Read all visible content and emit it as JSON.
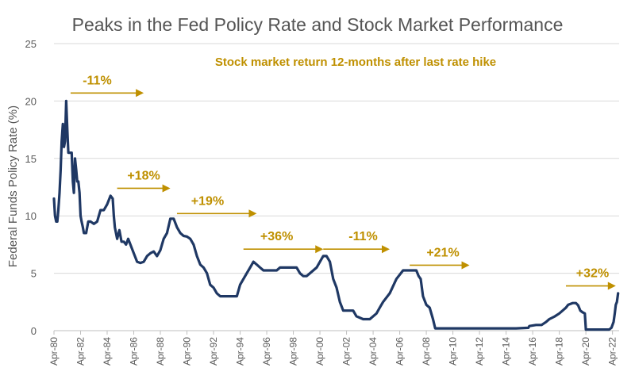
{
  "chart_data": {
    "type": "line",
    "title": "Peaks in the Fed Policy Rate and Stock Market Performance",
    "subtitle": "Stock market return 12-months after last rate hike",
    "xlabel": "",
    "ylabel": "Federal Funds Policy Rate (%)",
    "ylim": [
      0,
      25
    ],
    "yticks": [
      0,
      5,
      10,
      15,
      20,
      25
    ],
    "xlim": [
      1980.25,
      2022.75
    ],
    "xtick_labels": [
      "Apr-80",
      "Apr-82",
      "Apr-84",
      "Apr-86",
      "Apr-88",
      "Apr-90",
      "Apr-92",
      "Apr-94",
      "Apr-96",
      "Apr-98",
      "Apr-00",
      "Apr-02",
      "Apr-04",
      "Apr-06",
      "Apr-08",
      "Apr-10",
      "Apr-12",
      "Apr-14",
      "Apr-16",
      "Apr-18",
      "Apr-20",
      "Apr-22"
    ],
    "xtick_values": [
      1980.25,
      1982.25,
      1984.25,
      1986.25,
      1988.25,
      1990.25,
      1992.25,
      1994.25,
      1996.25,
      1998.25,
      2000.25,
      2002.25,
      2004.25,
      2006.25,
      2008.25,
      2010.25,
      2012.25,
      2014.25,
      2016.25,
      2018.25,
      2020.25,
      2022.25
    ],
    "grid": "horizontal",
    "colors": {
      "line": "#1f3864",
      "accent": "#bf9000",
      "title": "#555555"
    },
    "series": [
      {
        "x": [
          1980.25,
          1980.33,
          1980.42,
          1980.5,
          1980.58,
          1980.67,
          1980.75,
          1980.83,
          1980.92,
          1981.0,
          1981.08,
          1981.17,
          1981.25,
          1981.33,
          1981.42,
          1981.5,
          1981.58,
          1981.67,
          1981.75,
          1981.83,
          1981.92,
          1982.0,
          1982.08,
          1982.17,
          1982.25,
          1982.33,
          1982.42,
          1982.5,
          1982.58,
          1982.67,
          1982.83,
          1983.0,
          1983.25,
          1983.5,
          1983.75,
          1984.0,
          1984.25,
          1984.5,
          1984.67,
          1984.75,
          1984.83,
          1985.0,
          1985.17,
          1985.33,
          1985.5,
          1985.67,
          1985.83,
          1986.0,
          1986.25,
          1986.5,
          1986.75,
          1987.0,
          1987.25,
          1987.5,
          1987.75,
          1988.0,
          1988.25,
          1988.5,
          1988.75,
          1989.0,
          1989.25,
          1989.5,
          1989.75,
          1990.0,
          1990.25,
          1990.5,
          1990.75,
          1991.0,
          1991.25,
          1991.5,
          1991.75,
          1992.0,
          1992.25,
          1992.5,
          1992.75,
          1993.0,
          1993.5,
          1994.0,
          1994.25,
          1994.5,
          1994.75,
          1995.0,
          1995.25,
          1995.5,
          1995.75,
          1996.0,
          1996.5,
          1997.0,
          1997.25,
          1997.5,
          1998.0,
          1998.5,
          1998.75,
          1999.0,
          1999.25,
          1999.5,
          1999.75,
          2000.0,
          2000.25,
          2000.5,
          2000.75,
          2001.0,
          2001.25,
          2001.5,
          2001.75,
          2002.0,
          2002.5,
          2002.75,
          2003.0,
          2003.5,
          2003.75,
          2004.0,
          2004.5,
          2004.75,
          2005.0,
          2005.5,
          2006.0,
          2006.5,
          2006.75,
          2007.0,
          2007.5,
          2007.67,
          2007.83,
          2008.0,
          2008.25,
          2008.5,
          2008.75,
          2008.92,
          2009.0,
          2010.0,
          2011.0,
          2012.0,
          2013.0,
          2014.0,
          2015.0,
          2015.92,
          2016.0,
          2016.5,
          2016.92,
          2017.25,
          2017.5,
          2017.92,
          2018.25,
          2018.5,
          2018.75,
          2018.92,
          2019.25,
          2019.5,
          2019.67,
          2019.83,
          2020.0,
          2020.17,
          2020.25,
          2021.0,
          2021.5,
          2022.0,
          2022.17,
          2022.33,
          2022.42,
          2022.5,
          2022.58,
          2022.67
        ],
        "values": [
          11.5,
          10.0,
          9.5,
          9.5,
          10.5,
          12.0,
          14.0,
          16.5,
          18.0,
          16.0,
          16.5,
          20.0,
          17.5,
          15.5,
          15.5,
          15.5,
          15.5,
          13.0,
          12.0,
          15.0,
          14.0,
          13.0,
          13.0,
          12.0,
          10.0,
          9.5,
          9.0,
          8.5,
          8.5,
          8.5,
          9.5,
          9.5,
          9.3,
          9.5,
          10.5,
          10.5,
          11.0,
          11.75,
          11.5,
          10.0,
          9.0,
          8.0,
          8.75,
          7.75,
          7.75,
          7.5,
          8.0,
          7.5,
          6.75,
          6.0,
          5.9,
          6.0,
          6.5,
          6.75,
          6.9,
          6.5,
          7.0,
          8.0,
          8.5,
          9.75,
          9.75,
          9.0,
          8.5,
          8.25,
          8.2,
          8.0,
          7.5,
          6.5,
          5.75,
          5.5,
          5.0,
          4.0,
          3.75,
          3.25,
          3.0,
          3.0,
          3.0,
          3.0,
          4.0,
          4.5,
          5.0,
          5.5,
          6.0,
          5.75,
          5.5,
          5.25,
          5.25,
          5.25,
          5.5,
          5.5,
          5.5,
          5.5,
          5.0,
          4.75,
          4.75,
          5.0,
          5.25,
          5.5,
          6.0,
          6.5,
          6.5,
          6.0,
          4.5,
          3.75,
          2.5,
          1.75,
          1.75,
          1.75,
          1.25,
          1.0,
          1.0,
          1.0,
          1.5,
          2.0,
          2.5,
          3.25,
          4.5,
          5.25,
          5.25,
          5.25,
          5.25,
          4.75,
          4.5,
          3.0,
          2.25,
          2.0,
          1.0,
          0.2,
          0.2,
          0.2,
          0.2,
          0.2,
          0.2,
          0.2,
          0.2,
          0.25,
          0.4,
          0.5,
          0.5,
          0.75,
          1.0,
          1.25,
          1.5,
          1.75,
          2.0,
          2.25,
          2.4,
          2.4,
          2.2,
          1.75,
          1.6,
          1.5,
          0.1,
          0.1,
          0.1,
          0.1,
          0.25,
          0.75,
          1.5,
          2.25,
          2.5,
          3.25
        ]
      }
    ],
    "annotations": [
      {
        "label": "-11%",
        "x_start": 1981.5,
        "x_end": 1987.0,
        "y": 20.7,
        "label_x": 1983.5
      },
      {
        "label": "+18%",
        "x_start": 1985.0,
        "x_end": 1989.0,
        "y": 12.4,
        "label_x": 1987.0
      },
      {
        "label": "+19%",
        "x_start": 1989.5,
        "x_end": 1995.5,
        "y": 10.2,
        "label_x": 1991.8
      },
      {
        "label": "+36%",
        "x_start": 1994.5,
        "x_end": 2000.5,
        "y": 7.1,
        "label_x": 1997.0
      },
      {
        "label": "-11%",
        "x_start": 2000.5,
        "x_end": 2005.5,
        "y": 7.1,
        "label_x": 2003.5
      },
      {
        "label": "+21%",
        "x_start": 2007.0,
        "x_end": 2011.5,
        "y": 5.7,
        "label_x": 2009.5
      },
      {
        "label": "+32%",
        "x_start": 2018.75,
        "x_end": 2022.5,
        "y": 3.9,
        "label_x": 2020.75
      }
    ]
  }
}
